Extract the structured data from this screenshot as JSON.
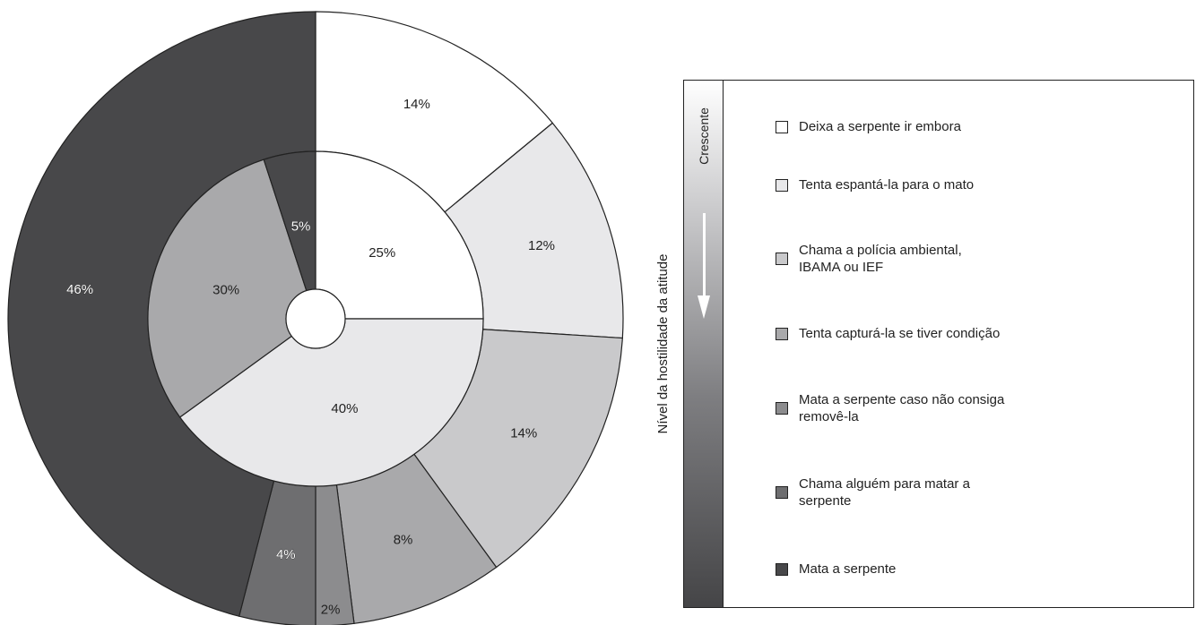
{
  "chart_data": {
    "type": "pie",
    "categories": [
      "Deixa a serpente ir embora",
      "Tenta espantá-la para o mato",
      "Chama a polícia ambiental,\nIBAMA ou IEF",
      "Tenta capturá-la se tiver condição",
      "Mata a serpente caso não consiga\nremovê-la",
      "Chama alguém para matar a\nserpente",
      "Mata a serpente"
    ],
    "colors": [
      "#ffffff",
      "#e8e8ea",
      "#c9c9cb",
      "#a9a9ab",
      "#8c8c8e",
      "#6e6e70",
      "#48484a"
    ],
    "inner_ring": {
      "slices": [
        {
          "value": 25,
          "label": "25%",
          "category": 0
        },
        {
          "value": 40,
          "label": "40%",
          "category": 1
        },
        {
          "value": 30,
          "label": "30%",
          "category": 3
        },
        {
          "value": 5,
          "label": "5%",
          "category": 6
        }
      ]
    },
    "outer_ring": {
      "slices": [
        {
          "value": 14,
          "label": "14%",
          "category": 0
        },
        {
          "value": 12,
          "label": "12%",
          "category": 1
        },
        {
          "value": 14,
          "label": "14%",
          "category": 2
        },
        {
          "value": 8,
          "label": "8%",
          "category": 3
        },
        {
          "value": 2,
          "label": "2%",
          "category": 4
        },
        {
          "value": 4,
          "label": "4%",
          "category": 5
        },
        {
          "value": 46,
          "label": "46%",
          "category": 6
        }
      ]
    },
    "ylabel": "Nível da hostilidade da atitude",
    "scale_label": "Crescente",
    "legend_position": "right"
  }
}
